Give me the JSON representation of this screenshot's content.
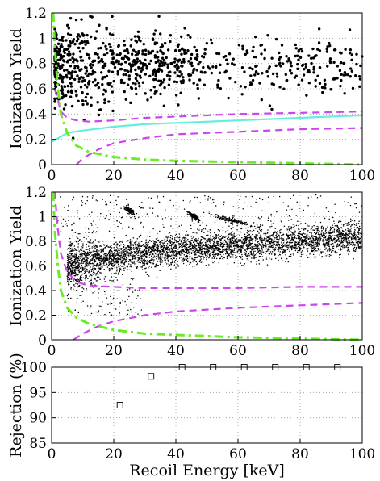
{
  "colors": {
    "points": "#000000",
    "boundary": "#cc44ee",
    "threshold": "#66ee22",
    "fit": "#66eedd",
    "grid": "#999999"
  },
  "chart_data": [
    {
      "type": "scatter",
      "ylabel": "Ionization Yield",
      "xlim": [
        0,
        100
      ],
      "ylim": [
        0,
        1.2
      ],
      "xticks": [
        "0",
        "20",
        "40",
        "60",
        "80",
        "100"
      ],
      "yticks": [
        "0",
        "0.2",
        "0.4",
        "0.6",
        "0.8",
        "1",
        "1.2"
      ],
      "grid": true,
      "points_description_count": 900,
      "series": [
        {
          "kind": "scatter",
          "center": 0.78,
          "spread": 0.12,
          "x": [
            1,
            100
          ]
        },
        {
          "kind": "line",
          "style": "dashed",
          "color": "boundary",
          "x": [
            1,
            3,
            5,
            8,
            12,
            20,
            30,
            40,
            60,
            80,
            100
          ],
          "y": [
            0.6,
            0.42,
            0.37,
            0.35,
            0.34,
            0.35,
            0.37,
            0.38,
            0.4,
            0.41,
            0.42
          ]
        },
        {
          "kind": "line",
          "style": "dashed",
          "color": "boundary",
          "x": [
            8,
            10,
            15,
            20,
            30,
            40,
            60,
            80,
            100
          ],
          "y": [
            0.0,
            0.05,
            0.12,
            0.17,
            0.21,
            0.24,
            0.26,
            0.28,
            0.29
          ]
        },
        {
          "kind": "line",
          "style": "solid",
          "color": "fit",
          "x": [
            0,
            5,
            10,
            20,
            30,
            40,
            60,
            80,
            100
          ],
          "y": [
            0.18,
            0.25,
            0.27,
            0.3,
            0.32,
            0.33,
            0.35,
            0.37,
            0.39
          ]
        },
        {
          "kind": "line",
          "style": "dashdot",
          "color": "threshold",
          "x": [
            0.5,
            1,
            2,
            3,
            5,
            8,
            12,
            20,
            30,
            40,
            60,
            80,
            100
          ],
          "y": [
            1.2,
            0.95,
            0.6,
            0.4,
            0.25,
            0.15,
            0.1,
            0.06,
            0.04,
            0.03,
            0.02,
            0.01,
            0.0
          ]
        }
      ]
    },
    {
      "type": "scatter",
      "ylabel": "Ionization Yield",
      "xlim": [
        0,
        100
      ],
      "ylim": [
        0,
        1.2
      ],
      "xticks": [
        "0",
        "20",
        "40",
        "60",
        "80",
        "100"
      ],
      "yticks": [
        "0",
        "0.2",
        "0.4",
        "0.6",
        "0.8",
        "1",
        "1.2"
      ],
      "grid": true,
      "series": [
        {
          "kind": "band",
          "x": [
            5,
            100
          ],
          "y_start": 0.57,
          "y_end": 0.83,
          "spread": 0.06
        },
        {
          "kind": "cluster",
          "x": 46,
          "y": 1.0,
          "spread": 0.5
        },
        {
          "kind": "cluster",
          "x": 58,
          "y": 0.97,
          "spread": 1.5
        },
        {
          "kind": "cluster",
          "x": 25,
          "y": 1.05,
          "spread": 0.5
        },
        {
          "kind": "line",
          "style": "dashed",
          "color": "boundary",
          "x": [
            1,
            2,
            3,
            5,
            8,
            12,
            20,
            30,
            40,
            60,
            80,
            100
          ],
          "y": [
            1.2,
            0.9,
            0.7,
            0.55,
            0.47,
            0.44,
            0.43,
            0.42,
            0.42,
            0.42,
            0.43,
            0.43
          ]
        },
        {
          "kind": "line",
          "style": "dashed",
          "color": "boundary",
          "x": [
            7,
            10,
            15,
            20,
            30,
            40,
            60,
            80,
            100
          ],
          "y": [
            0.0,
            0.05,
            0.11,
            0.15,
            0.2,
            0.23,
            0.26,
            0.28,
            0.3
          ]
        },
        {
          "kind": "line",
          "style": "dashdot",
          "color": "threshold",
          "x": [
            0.5,
            1,
            2,
            3,
            5,
            8,
            12,
            20,
            30,
            40,
            60,
            80,
            100
          ],
          "y": [
            1.2,
            0.9,
            0.6,
            0.4,
            0.26,
            0.18,
            0.13,
            0.08,
            0.05,
            0.04,
            0.02,
            0.01,
            0.0
          ]
        }
      ]
    },
    {
      "type": "scatter",
      "ylabel": "Rejection (%)",
      "xlabel": "Recoil Energy [keV]",
      "xlim": [
        0,
        100
      ],
      "ylim": [
        85,
        100
      ],
      "xticks": [
        "0",
        "20",
        "40",
        "60",
        "80",
        "100"
      ],
      "yticks": [
        "85",
        "90",
        "95",
        "100"
      ],
      "grid": true,
      "x": [
        22,
        32,
        42,
        52,
        62,
        72,
        82,
        92
      ],
      "y": [
        92.5,
        98.2,
        100,
        100,
        100,
        100,
        100,
        100
      ]
    }
  ]
}
